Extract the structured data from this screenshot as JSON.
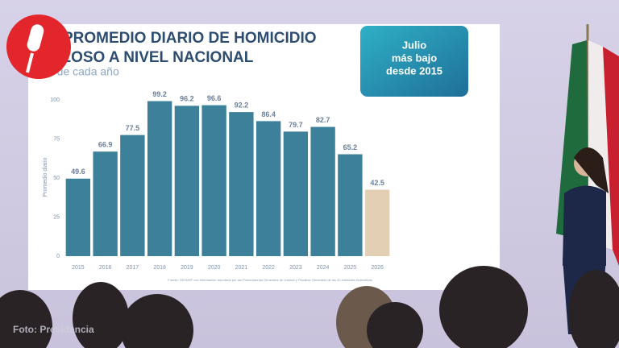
{
  "chart_data": {
    "type": "bar",
    "title_lines": [
      "PROMEDIO DIARIO DE HOMICIDIO",
      "DOLOSO A NIVEL NACIONAL"
    ],
    "subtitle": "Julio de cada año",
    "y_label": "Promedio diario",
    "categories": [
      "2015",
      "2016",
      "2017",
      "2018",
      "2019",
      "2020",
      "2021",
      "2022",
      "2023",
      "2024",
      "2025",
      "2026"
    ],
    "values": [
      49.6,
      66.9,
      77.5,
      99.2,
      96.2,
      96.6,
      92.2,
      86.4,
      79.7,
      82.7,
      65.2,
      42.5
    ],
    "colors": [
      "#3c8099",
      "#3c8099",
      "#3c8099",
      "#3c8099",
      "#3c8099",
      "#3c8099",
      "#3c8099",
      "#3c8099",
      "#3c8099",
      "#3c8099",
      "#3c8099",
      "#e3cfb3"
    ],
    "ylim": [
      0,
      100
    ],
    "yticks": [
      0,
      25,
      50,
      75,
      100
    ],
    "badge_lines": [
      "Julio",
      "más bajo",
      "desde 2015"
    ],
    "source": "Fuente: SESNSP con información reportada por las Procuradurías Generales de Justicia y Fiscalías Generales de las 32 entidades federativas"
  },
  "photo_credit": "Foto: Presidencia"
}
